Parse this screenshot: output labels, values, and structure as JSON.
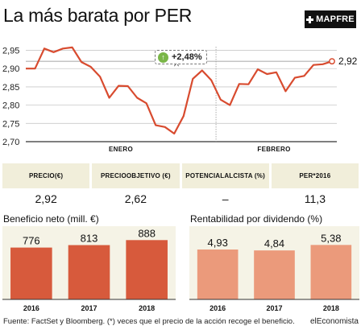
{
  "header": {
    "title": "La más barata por PER",
    "brand_logo_text": "MAPFRE"
  },
  "annotation": {
    "label": "+2,48%",
    "icon": "up-arrow-icon"
  },
  "stats": [
    {
      "label_line1": "PRECIO",
      "label_line2": "(€)",
      "value": "2,92"
    },
    {
      "label_line1": "PRECIO",
      "label_line2": "OBJETIVO (€)",
      "value": "2,62"
    },
    {
      "label_line1": "POTENCIAL",
      "label_line2": "ALCISTA (%)",
      "value": "–"
    },
    {
      "label_line1": "PER*",
      "label_line2": "2016",
      "value": "11,3"
    }
  ],
  "benefit": {
    "title": "Beneficio neto (mill. €)"
  },
  "yield": {
    "title": "Rentabilidad por dividendo (%)"
  },
  "footer": {
    "source": "Fuente: FactSet y Bloomberg. (*) veces que el precio de la acción recoge el beneficio.",
    "publisher": "elEconomista"
  },
  "colors": {
    "price_line": "#d84b2f",
    "benefit_bar": "#d75a3c",
    "yield_bar": "#eb9a7b",
    "stat_label_bg": "#f1eeda",
    "chart_bg": "#f5f3e6"
  },
  "chart_data": [
    {
      "type": "line",
      "x_labels": [
        "ENERO",
        "FEBRERO"
      ],
      "y_ticks": [
        "2,95",
        "2,90",
        "2,85",
        "2,80",
        "2,75",
        "2,70"
      ],
      "ylim": [
        2.7,
        2.96
      ],
      "grid": true,
      "series": [
        {
          "values": [
            2.9,
            2.9,
            2.955,
            2.945,
            2.955,
            2.958,
            2.918,
            2.905,
            2.878,
            2.82,
            2.853,
            2.852,
            2.82,
            2.805,
            2.745,
            2.74,
            2.722,
            2.77,
            2.872,
            2.895,
            2.868,
            2.815,
            2.8,
            2.858,
            2.857,
            2.898,
            2.885,
            2.89,
            2.838,
            2.875,
            2.88,
            2.91,
            2.912,
            2.92
          ]
        }
      ],
      "last_value_label": "2,92",
      "reference_line": 2.92
    },
    {
      "type": "bar",
      "categories": [
        "2016",
        "2017",
        "2018"
      ],
      "values": [
        776,
        813,
        888
      ],
      "value_labels": [
        "776",
        "813",
        "888"
      ],
      "ylim": [
        0,
        1000
      ]
    },
    {
      "type": "bar",
      "categories": [
        "2016",
        "2017",
        "2018"
      ],
      "values": [
        4.93,
        4.84,
        5.38
      ],
      "value_labels": [
        "4,93",
        "4,84",
        "5,38"
      ],
      "ylim": [
        0,
        6.6
      ]
    }
  ]
}
